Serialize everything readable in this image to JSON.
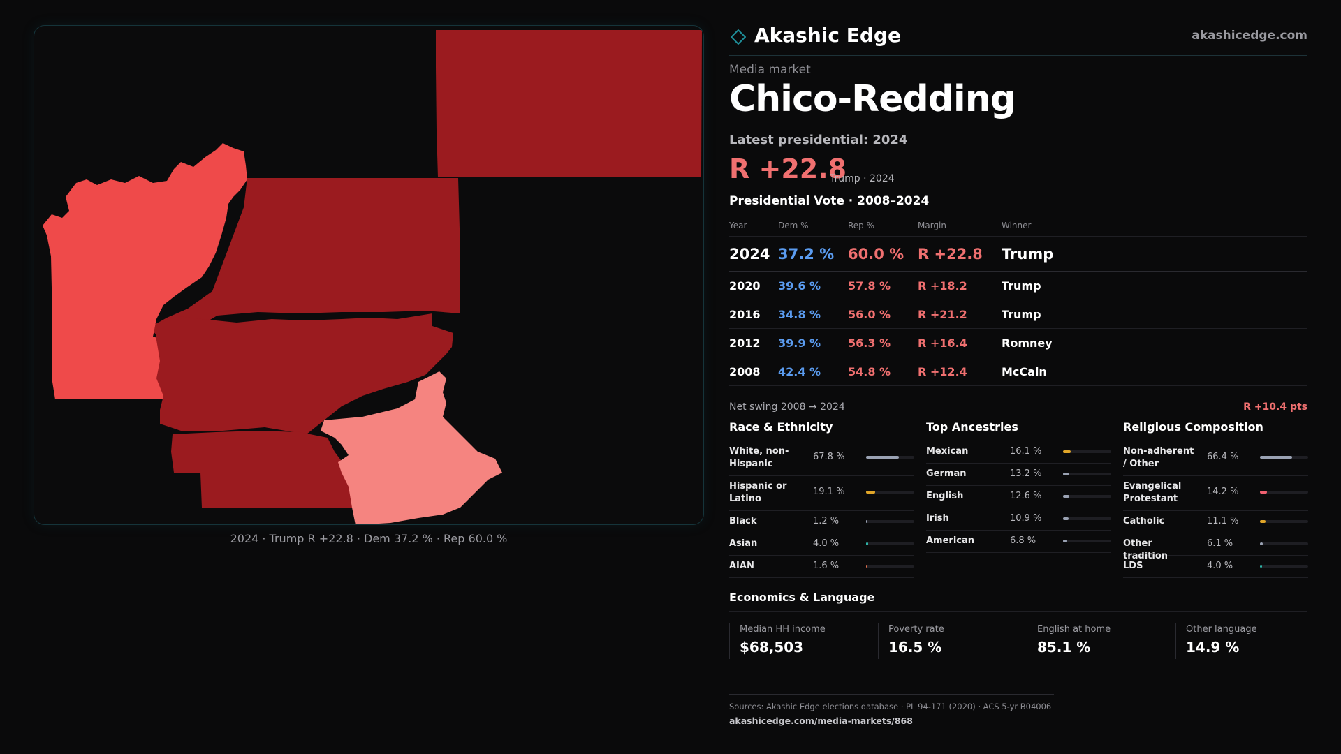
{
  "brand": {
    "name": "Akashic Edge",
    "url": "akashicedge.com"
  },
  "market": {
    "kicker": "Media market",
    "name": "Chico-Redding",
    "latest_label": "Latest presidential: 2024",
    "headline_margin": "R +22.8",
    "headline_sub": "Trump · 2024"
  },
  "map": {
    "caption": "2024 · Trump R +22.8 · Dem 37.2 % · Rep 60.0 %",
    "colors": {
      "dark_red": "#9b1b1f",
      "mid_red": "#ef4a4a",
      "light_red": "#f58480"
    }
  },
  "votes": {
    "title": "Presidential Vote · 2008–2024",
    "headers": {
      "year": "Year",
      "dem": "Dem %",
      "rep": "Rep %",
      "margin": "Margin",
      "winner": "Winner"
    },
    "rows": [
      {
        "year": "2024",
        "dem": "37.2 %",
        "rep": "60.0 %",
        "margin": "R +22.8",
        "winner": "Trump"
      },
      {
        "year": "2020",
        "dem": "39.6 %",
        "rep": "57.8 %",
        "margin": "R +18.2",
        "winner": "Trump"
      },
      {
        "year": "2016",
        "dem": "34.8 %",
        "rep": "56.0 %",
        "margin": "R +21.2",
        "winner": "Trump"
      },
      {
        "year": "2012",
        "dem": "39.9 %",
        "rep": "56.3 %",
        "margin": "R +16.4",
        "winner": "Romney"
      },
      {
        "year": "2008",
        "dem": "42.4 %",
        "rep": "54.8 %",
        "margin": "R +12.4",
        "winner": "McCain"
      }
    ],
    "swing_label": "Net swing 2008 → 2024",
    "swing_value": "R +10.4 pts"
  },
  "race": {
    "title": "Race & Ethnicity",
    "rows": [
      {
        "label": "White, non-Hispanic",
        "value": "67.8 %",
        "pct": 67.8,
        "color": "#9aa2b3"
      },
      {
        "label": "Hispanic or Latino",
        "value": "19.1 %",
        "pct": 19.1,
        "color": "#e0a528"
      },
      {
        "label": "Black",
        "value": "1.2 %",
        "pct": 1.2,
        "color": "#9aa2b3"
      },
      {
        "label": "Asian",
        "value": "4.0 %",
        "pct": 4.0,
        "color": "#2fb5a8"
      },
      {
        "label": "AIAN",
        "value": "1.6 %",
        "pct": 1.6,
        "color": "#e07050"
      }
    ]
  },
  "ancestry": {
    "title": "Top Ancestries",
    "rows": [
      {
        "label": "Mexican",
        "value": "16.1 %",
        "pct": 16.1,
        "color": "#e0a528"
      },
      {
        "label": "German",
        "value": "13.2 %",
        "pct": 13.2,
        "color": "#9aa2b3"
      },
      {
        "label": "English",
        "value": "12.6 %",
        "pct": 12.6,
        "color": "#9aa2b3"
      },
      {
        "label": "Irish",
        "value": "10.9 %",
        "pct": 10.9,
        "color": "#9aa2b3"
      },
      {
        "label": "American",
        "value": "6.8 %",
        "pct": 6.8,
        "color": "#9aa2b3"
      }
    ]
  },
  "religion": {
    "title": "Religious Composition",
    "rows": [
      {
        "label": "Non-adherent / Other",
        "value": "66.4 %",
        "pct": 66.4,
        "color": "#9aa2b3"
      },
      {
        "label": "Evangelical Protestant",
        "value": "14.2 %",
        "pct": 14.2,
        "color": "#f06070"
      },
      {
        "label": "Catholic",
        "value": "11.1 %",
        "pct": 11.1,
        "color": "#e0a528"
      },
      {
        "label": "Other tradition",
        "value": "6.1 %",
        "pct": 6.1,
        "color": "#9aa2b3"
      },
      {
        "label": "LDS",
        "value": "4.0 %",
        "pct": 4.0,
        "color": "#2fb5a8"
      }
    ]
  },
  "economics": {
    "title": "Economics & Language",
    "cells": [
      {
        "label": "Median HH income",
        "value": "$68,503"
      },
      {
        "label": "Poverty rate",
        "value": "16.5 %"
      },
      {
        "label": "English at home",
        "value": "85.1 %"
      },
      {
        "label": "Other language",
        "value": "14.9 %"
      }
    ]
  },
  "sources": {
    "text": "Sources: Akashic Edge elections database · PL 94-171 (2020) · ACS 5-yr B04006",
    "url": "akashicedge.com/media-markets/868"
  }
}
